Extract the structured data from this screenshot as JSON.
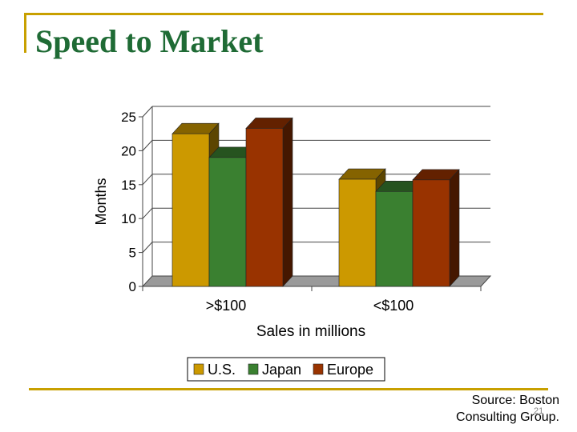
{
  "slide": {
    "title": "Speed to Market",
    "source_line1": "Source: Boston",
    "source_line2": "Consulting Group.",
    "slide_number": "21"
  },
  "colors": {
    "frame": "#c8a000",
    "title": "#1f6b35",
    "us": "#cc9900",
    "japan": "#3a8030",
    "europe": "#993300"
  },
  "chart_data": {
    "type": "bar",
    "style": "3d-clustered-column",
    "title": "",
    "categories": [
      ">$100",
      "<$100"
    ],
    "series": [
      {
        "name": "U.S.",
        "values": [
          22.5,
          15.8
        ],
        "color": "#cc9900"
      },
      {
        "name": "Japan",
        "values": [
          19,
          14
        ],
        "color": "#3a8030"
      },
      {
        "name": "Europe",
        "values": [
          23.3,
          15.7
        ],
        "color": "#993300"
      }
    ],
    "xlabel": "Sales in millions",
    "ylabel": "Months",
    "ylim": [
      0,
      25
    ],
    "yticks": [
      "0",
      "5",
      "10",
      "15",
      "20",
      "25"
    ],
    "grid": true,
    "legend_position": "bottom"
  }
}
